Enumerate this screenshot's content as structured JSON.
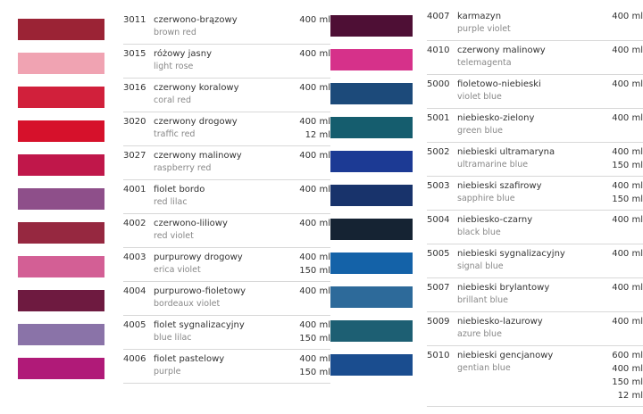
{
  "left": [
    {
      "code": "3011",
      "name": "czerwono-brązowy",
      "english": "brown red",
      "sizes": [
        "400 ml"
      ],
      "swatch": "#9b2335"
    },
    {
      "code": "3015",
      "name": "różowy jasny",
      "english": "light rose",
      "sizes": [
        "400 ml"
      ],
      "swatch": "#f0a3b2"
    },
    {
      "code": "3016",
      "name": "czerwony koralowy",
      "english": "coral red",
      "sizes": [
        "400 ml"
      ],
      "swatch": "#d1203b"
    },
    {
      "code": "3020",
      "name": "czerwony drogowy",
      "english": "traffic red",
      "sizes": [
        "400 ml",
        "12 ml"
      ],
      "swatch": "#d6112b"
    },
    {
      "code": "3027",
      "name": "czerwony malinowy",
      "english": "raspberry red",
      "sizes": [
        "400 ml"
      ],
      "swatch": "#c0174a"
    },
    {
      "code": "4001",
      "name": "fiolet bordo",
      "english": "red lilac",
      "sizes": [
        "400 ml"
      ],
      "swatch": "#8e4f8a"
    },
    {
      "code": "4002",
      "name": "czerwono-liliowy",
      "english": "red violet",
      "sizes": [
        "400 ml"
      ],
      "swatch": "#962840"
    },
    {
      "code": "4003",
      "name": "purpurowy drogowy",
      "english": "erica violet",
      "sizes": [
        "400 ml",
        "150 ml"
      ],
      "swatch": "#d35f95"
    },
    {
      "code": "4004",
      "name": "purpurowo-fioletowy",
      "english": "bordeaux violet",
      "sizes": [
        "400 ml"
      ],
      "swatch": "#6e1a40"
    },
    {
      "code": "4005",
      "name": "fiolet sygnalizacyjny",
      "english": "blue lilac",
      "sizes": [
        "400 ml",
        "150 ml"
      ],
      "swatch": "#8a73a8"
    },
    {
      "code": "4006",
      "name": "fiolet pastelowy",
      "english": "purple",
      "sizes": [
        "400 ml",
        "150 ml"
      ],
      "swatch": "#b01a78"
    }
  ],
  "right": [
    {
      "code": "4007",
      "name": "karmazyn",
      "english": "purple violet",
      "sizes": [
        "400 ml"
      ],
      "swatch": "#4e0f35"
    },
    {
      "code": "4010",
      "name": "czerwony malinowy",
      "english": "telemagenta",
      "sizes": [
        "400 ml"
      ],
      "swatch": "#d6318a"
    },
    {
      "code": "5000",
      "name": "fioletowo-niebieski",
      "english": "violet blue",
      "sizes": [
        "400 ml"
      ],
      "swatch": "#1c4a7a"
    },
    {
      "code": "5001",
      "name": "niebiesko-zielony",
      "english": "green blue",
      "sizes": [
        "400 ml"
      ],
      "swatch": "#155d6e"
    },
    {
      "code": "5002",
      "name": "niebieski ultramaryna",
      "english": "ultramarine blue",
      "sizes": [
        "400 ml",
        "150 ml"
      ],
      "swatch": "#1c3a94"
    },
    {
      "code": "5003",
      "name": "niebieski szafirowy",
      "english": "sapphire blue",
      "sizes": [
        "400 ml",
        "150 ml"
      ],
      "swatch": "#18336b"
    },
    {
      "code": "5004",
      "name": "niebiesko-czarny",
      "english": "black blue",
      "sizes": [
        "400 ml"
      ],
      "swatch": "#152333"
    },
    {
      "code": "5005",
      "name": "niebieski sygnalizacyjny",
      "english": "signal blue",
      "sizes": [
        "400 ml"
      ],
      "swatch": "#1462a8"
    },
    {
      "code": "5007",
      "name": "niebieski brylantowy",
      "english": "brillant blue",
      "sizes": [
        "400 ml"
      ],
      "swatch": "#2d6a9a"
    },
    {
      "code": "5009",
      "name": "niebiesko-lazurowy",
      "english": "azure blue",
      "sizes": [
        "400 ml"
      ],
      "swatch": "#1d5f73"
    },
    {
      "code": "5010",
      "name": "niebieski gencjanowy",
      "english": "gentian blue",
      "sizes": [
        "600 ml",
        "400 ml",
        "150 ml",
        "12 ml"
      ],
      "swatch": "#1a4d8f"
    }
  ]
}
